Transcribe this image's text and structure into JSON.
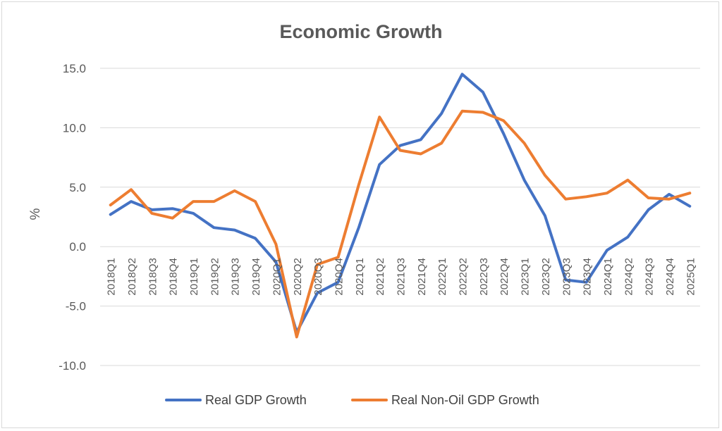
{
  "chart_data": {
    "type": "line",
    "title": "Economic Growth",
    "xlabel": "",
    "ylabel": "%",
    "ylim": [
      -10,
      15
    ],
    "yticks": [
      -10,
      -5,
      0,
      5,
      10,
      15
    ],
    "ytick_labels": [
      "-10.0",
      "-5.0",
      "0.0",
      "5.0",
      "10.0",
      "15.0"
    ],
    "grid": "horizontal",
    "legend_position": "bottom",
    "categories": [
      "2018Q1",
      "2018Q2",
      "2018Q3",
      "2018Q4",
      "2019Q1",
      "2019Q2",
      "2019Q3",
      "2019Q4",
      "2020Q1",
      "2020Q2",
      "2020Q3",
      "2020Q4",
      "2021Q1",
      "2021Q2",
      "2021Q3",
      "2021Q4",
      "2022Q1",
      "2022Q2",
      "2022Q3",
      "2022Q4",
      "2023Q1",
      "2023Q2",
      "2023Q3",
      "2023Q4",
      "2024Q1",
      "2024Q2",
      "2024Q3",
      "2024Q4",
      "2025Q1"
    ],
    "series": [
      {
        "name": "Real GDP Growth",
        "color": "#4472C4",
        "values": [
          2.7,
          3.8,
          3.1,
          3.2,
          2.8,
          1.6,
          1.4,
          0.7,
          -1.3,
          -7.2,
          -3.9,
          -3.0,
          1.6,
          6.9,
          8.5,
          9.0,
          11.2,
          14.5,
          13.0,
          9.5,
          5.6,
          2.6,
          -2.8,
          -3.0,
          -0.3,
          0.8,
          3.1,
          4.4,
          3.4
        ]
      },
      {
        "name": "Real Non-Oil GDP Growth",
        "color": "#ED7D31",
        "values": [
          3.5,
          4.8,
          2.8,
          2.4,
          3.8,
          3.8,
          4.7,
          3.8,
          0.2,
          -7.6,
          -1.5,
          -0.9,
          5.2,
          10.9,
          8.1,
          7.8,
          8.7,
          11.4,
          11.3,
          10.6,
          8.7,
          6.0,
          4.0,
          4.2,
          4.5,
          5.6,
          4.1,
          4.0,
          4.5
        ]
      }
    ]
  }
}
